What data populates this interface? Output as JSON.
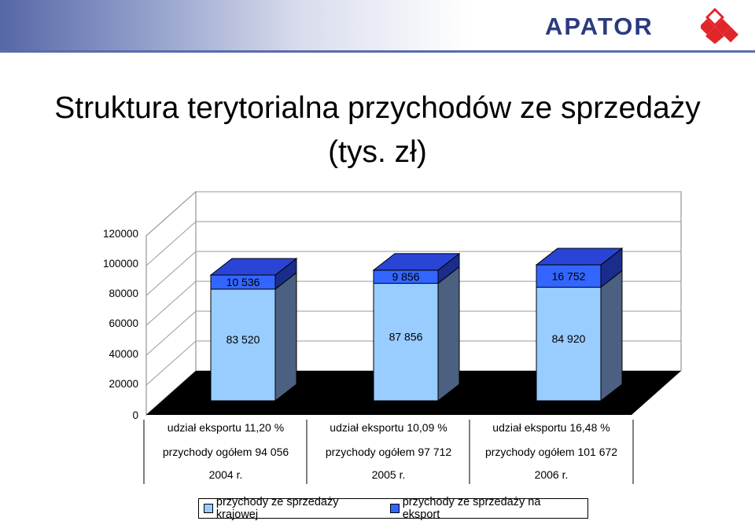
{
  "header": {
    "brand": "APATOR"
  },
  "slide_title": "Struktura terytorialna przychodów ze sprzedaży (tys. zł)",
  "colors": {
    "domestic": "#99ccff",
    "domestic_side": "#4c6181",
    "domestic_top": "#7e95b7",
    "export": "#3366ff",
    "export_side": "#1b2d8c",
    "export_top": "#2a44d6",
    "brand_blue": "#2b3a80",
    "brand_red": "#e1252b"
  },
  "chart_data": {
    "type": "bar",
    "stacked": true,
    "three_d": true,
    "title": "Struktura terytorialna przychodów ze sprzedaży (tys. zł)",
    "ylim": [
      0,
      120000
    ],
    "yticks": [
      "0",
      "20000",
      "40000",
      "60000",
      "80000",
      "100000",
      "120000"
    ],
    "ytick_values": [
      0,
      20000,
      40000,
      60000,
      80000,
      100000,
      120000
    ],
    "categories": [
      [
        "udział eksportu 11,20 %",
        "przychody ogółem 94 056",
        "2004 r."
      ],
      [
        "udział eksportu 10,09 %",
        "przychody ogółem 97 712",
        "2005 r."
      ],
      [
        "udział eksportu 16,48 %",
        "przychody ogółem 101 672",
        "2006 r."
      ]
    ],
    "series": [
      {
        "name": "przychody ze sprzedaży krajowej",
        "values": [
          83520,
          87856,
          84920
        ],
        "labels": [
          "83 520",
          "87 856",
          "84 920"
        ]
      },
      {
        "name": "przychody ze sprzedaży na eksport",
        "values": [
          10536,
          9856,
          16752
        ],
        "labels": [
          "10 536",
          "9 856",
          "16 752"
        ]
      }
    ],
    "legend_position": "bottom",
    "grid": true
  }
}
